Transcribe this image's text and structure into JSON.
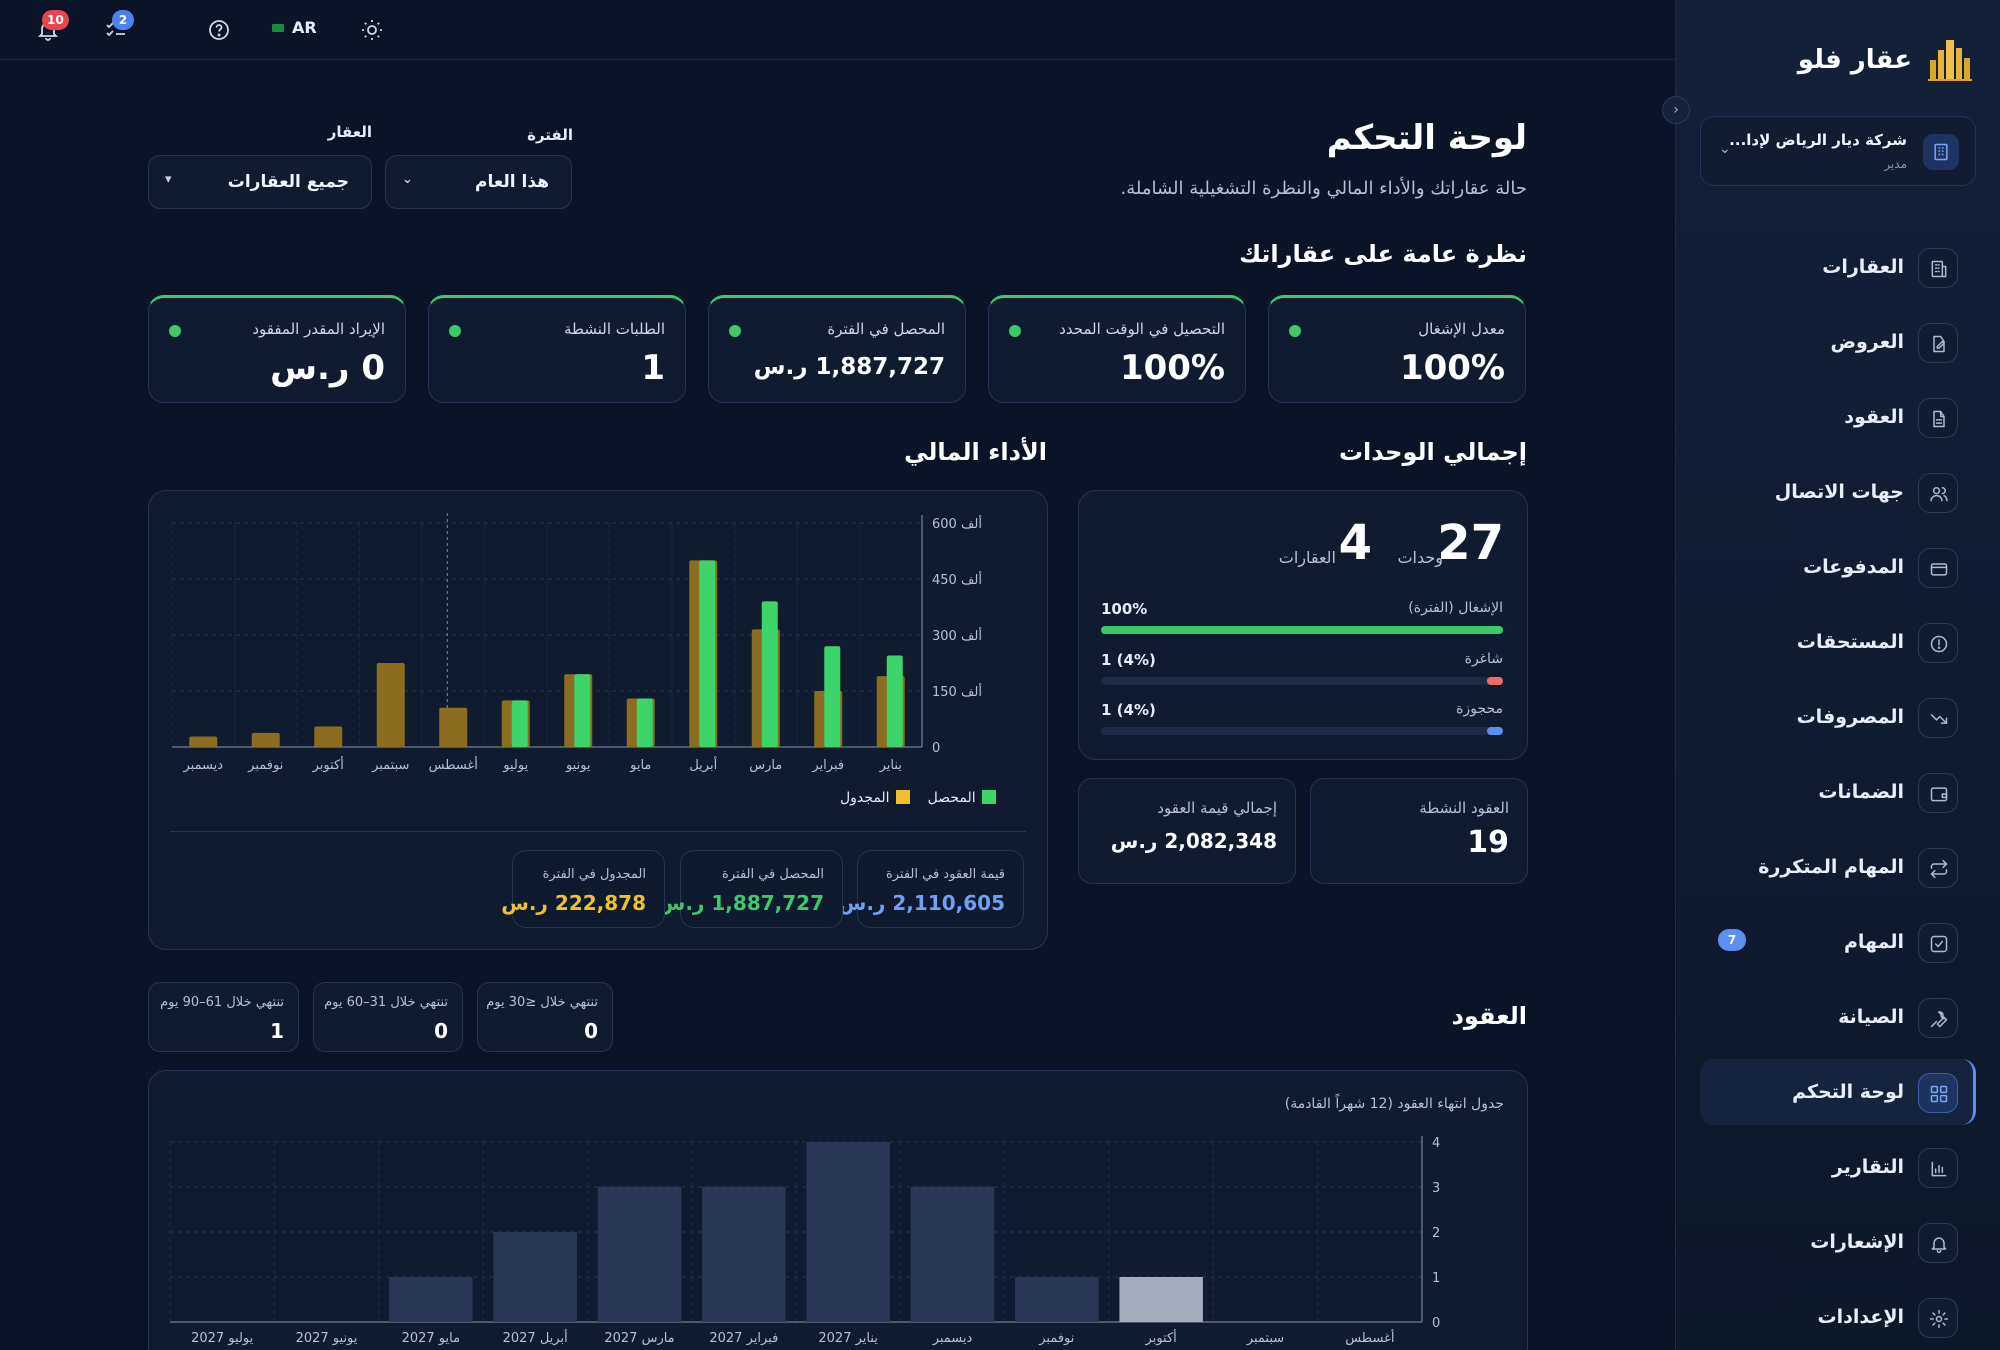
{
  "topbar": {
    "notifications_count": "10",
    "tasks_count": "2",
    "language": "AR"
  },
  "sidebar": {
    "brand": "عقار فلو",
    "company_name": "شركة ديار الرياض لإدا...",
    "company_role": "مدير",
    "items": [
      {
        "label": "العقارات",
        "icon": "building-icon"
      },
      {
        "label": "العروض",
        "icon": "edit-document-icon"
      },
      {
        "label": "العقود",
        "icon": "document-icon"
      },
      {
        "label": "جهات الاتصال",
        "icon": "users-icon"
      },
      {
        "label": "المدفوعات",
        "icon": "card-icon"
      },
      {
        "label": "المستحقات",
        "icon": "alert-circle-icon"
      },
      {
        "label": "المصروفات",
        "icon": "trend-down-icon"
      },
      {
        "label": "الضمانات",
        "icon": "wallet-icon"
      },
      {
        "label": "المهام المتكررة",
        "icon": "repeat-icon"
      },
      {
        "label": "المهام",
        "icon": "checkbox-icon",
        "badge": "7"
      },
      {
        "label": "الصيانة",
        "icon": "wrench-icon"
      },
      {
        "label": "لوحة التحكم",
        "icon": "grid-icon",
        "active": true
      },
      {
        "label": "التقارير",
        "icon": "bar-chart-icon"
      },
      {
        "label": "الإشعارات",
        "icon": "bell-icon"
      },
      {
        "label": "الإعدادات",
        "icon": "gear-icon"
      }
    ]
  },
  "header": {
    "title": "لوحة التحكم",
    "subtitle": "حالة عقاراتك والأداء المالي والنظرة التشغيلية الشاملة.",
    "period_label": "الفترة",
    "period_value": "هذا العام",
    "property_label": "العقار",
    "property_value": "جميع العقارات"
  },
  "overview": {
    "title": "نظرة عامة على عقاراتك",
    "kpis": [
      {
        "label": "معدل الإشغال",
        "value": "100%"
      },
      {
        "label": "التحصيل في الوقت المحدد",
        "value": "100%"
      },
      {
        "label": "المحصل في الفترة",
        "value": "1,887,727 ر.س"
      },
      {
        "label": "الطلبات النشطة",
        "value": "1"
      },
      {
        "label": "الإيراد المقدر المفقود",
        "value": "0 ر.س"
      }
    ]
  },
  "units": {
    "title": "إجمالي الوحدات",
    "units_count": "27",
    "units_label": "وحدات",
    "properties_count": "4",
    "properties_label": "العقارات",
    "rows": [
      {
        "label": "الإشغال (الفترة)",
        "value": "100%",
        "fraction": 1.0,
        "color": "#3dc96a"
      },
      {
        "label": "شاغرة",
        "value": "1 (4%)",
        "fraction": 0.04,
        "color": "#f06a6a"
      },
      {
        "label": "محجوزة",
        "value": "1 (4%)",
        "fraction": 0.04,
        "color": "#5b8ff0"
      }
    ],
    "active_contracts_label": "العقود النشطة",
    "active_contracts_value": "19",
    "contracts_total_label": "إجمالي قيمة العقود",
    "contracts_total_value": "2,082,348 ر.س"
  },
  "financial": {
    "title": "الأداء المالي",
    "legend_collected": "المحصل",
    "legend_scheduled": "المجدول",
    "summary": [
      {
        "label": "قيمة العقود في الفترة",
        "value": "2,110,605 ر.س",
        "color": "#6ea0f5"
      },
      {
        "label": "المحصل في الفترة",
        "value": "1,887,727 ر.س",
        "color": "#3dc96a"
      },
      {
        "label": "المجدول في الفترة",
        "value": "222,878 ر.س",
        "color": "#f2c02a"
      }
    ]
  },
  "contracts": {
    "title": "العقود",
    "expiring": [
      {
        "label": "تنتهي خلال ≤30 يوم",
        "value": "0"
      },
      {
        "label": "تنتهي خلال 31–60 يوم",
        "value": "0"
      },
      {
        "label": "تنتهي خلال 61–90 يوم",
        "value": "1"
      }
    ],
    "chart_title": "جدول انتهاء العقود (12 شهراً القادمة)"
  },
  "chart_data": [
    {
      "type": "bar",
      "title": "الأداء المالي",
      "categories": [
        "يناير",
        "فبراير",
        "مارس",
        "أبريل",
        "مايو",
        "يونيو",
        "يوليو",
        "أغسطس",
        "سبتمبر",
        "أكتوبر",
        "نوفمبر",
        "ديسمبر"
      ],
      "series": [
        {
          "name": "المجدول",
          "values": [
            190,
            150,
            315,
            500,
            130,
            195,
            125,
            105,
            225,
            55,
            38,
            28
          ],
          "color": "#f2c02a"
        },
        {
          "name": "المحصل",
          "values": [
            245,
            270,
            390,
            500,
            130,
            195,
            125,
            0,
            0,
            0,
            0,
            0
          ],
          "color": "#3dd46a"
        }
      ],
      "y_ticks": [
        "0",
        "150 ألف",
        "300 ألف",
        "450 ألف",
        "600 ألف"
      ],
      "ylim": [
        0,
        600
      ],
      "grid": true,
      "legend": "bottom"
    },
    {
      "type": "bar",
      "title": "جدول انتهاء العقود (12 شهراً القادمة)",
      "categories": [
        "أغسطس",
        "سبتمبر",
        "أكتوبر",
        "نوفمبر",
        "ديسمبر",
        "يناير 2027",
        "فبراير 2027",
        "مارس 2027",
        "أبريل 2027",
        "مايو 2027",
        "يونيو 2027",
        "يوليو 2027"
      ],
      "values": [
        0,
        0,
        1,
        1,
        3,
        4,
        3,
        3,
        2,
        1,
        0,
        0
      ],
      "highlight_index": 2,
      "y_ticks": [
        "0",
        "1",
        "2",
        "3",
        "4"
      ],
      "ylim": [
        0,
        4
      ],
      "grid": true
    }
  ]
}
